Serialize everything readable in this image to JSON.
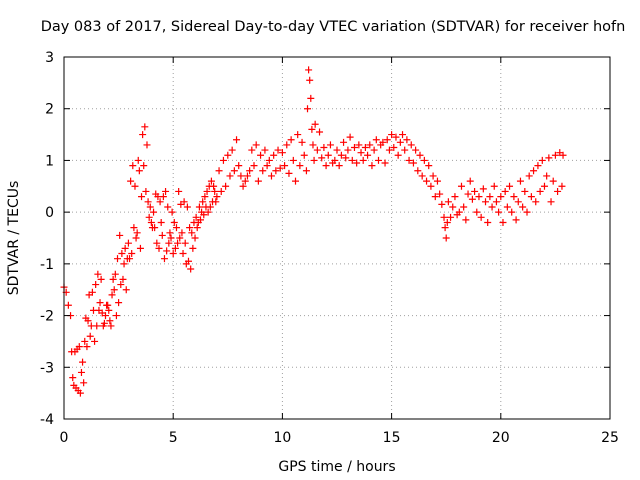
{
  "chart_data": {
    "type": "scatter",
    "title": "Day 083 of 2017, Sidereal Day-to-day VTEC variation (SDTVAR) for receiver hofn",
    "xlabel": "GPS time / hours",
    "ylabel": "SDTVAR / TECUs",
    "xlim": [
      0,
      25
    ],
    "ylim": [
      -4,
      3
    ],
    "xticks": [
      "0",
      "5",
      "10",
      "15",
      "20",
      "25"
    ],
    "yticks": [
      "-4",
      "-3",
      "-2",
      "-1",
      "0",
      "1",
      "2",
      "3"
    ],
    "grid": true,
    "marker": "plus",
    "series_color": "#ff0000",
    "series": [
      {
        "name": "SDTVAR",
        "points": [
          [
            0.0,
            -1.45
          ],
          [
            0.1,
            -1.55
          ],
          [
            0.2,
            -1.8
          ],
          [
            0.3,
            -2.0
          ],
          [
            0.35,
            -2.7
          ],
          [
            0.4,
            -3.2
          ],
          [
            0.45,
            -3.35
          ],
          [
            0.5,
            -2.7
          ],
          [
            0.55,
            -3.4
          ],
          [
            0.6,
            -2.65
          ],
          [
            0.65,
            -3.45
          ],
          [
            0.7,
            -2.6
          ],
          [
            0.75,
            -3.5
          ],
          [
            0.8,
            -3.1
          ],
          [
            0.85,
            -2.9
          ],
          [
            0.9,
            -3.3
          ],
          [
            0.95,
            -2.5
          ],
          [
            1.0,
            -2.05
          ],
          [
            1.05,
            -2.6
          ],
          [
            1.1,
            -2.1
          ],
          [
            1.15,
            -1.6
          ],
          [
            1.2,
            -2.4
          ],
          [
            1.25,
            -2.2
          ],
          [
            1.3,
            -1.55
          ],
          [
            1.35,
            -1.9
          ],
          [
            1.4,
            -2.5
          ],
          [
            1.45,
            -1.4
          ],
          [
            1.5,
            -2.2
          ],
          [
            1.55,
            -1.2
          ],
          [
            1.6,
            -1.9
          ],
          [
            1.65,
            -1.75
          ],
          [
            1.7,
            -1.3
          ],
          [
            1.75,
            -1.95
          ],
          [
            1.8,
            -2.2
          ],
          [
            1.85,
            -2.15
          ],
          [
            1.9,
            -2.0
          ],
          [
            1.95,
            -1.8
          ],
          [
            2.0,
            -1.8
          ],
          [
            2.05,
            -1.9
          ],
          [
            2.1,
            -2.1
          ],
          [
            2.15,
            -2.2
          ],
          [
            2.2,
            -1.6
          ],
          [
            2.25,
            -1.3
          ],
          [
            2.3,
            -1.5
          ],
          [
            2.35,
            -1.2
          ],
          [
            2.4,
            -2.0
          ],
          [
            2.45,
            -0.9
          ],
          [
            2.5,
            -1.75
          ],
          [
            2.55,
            -0.45
          ],
          [
            2.6,
            -1.4
          ],
          [
            2.65,
            -0.8
          ],
          [
            2.7,
            -1.3
          ],
          [
            2.75,
            -1.0
          ],
          [
            2.8,
            -0.7
          ],
          [
            2.85,
            -1.5
          ],
          [
            2.9,
            -0.9
          ],
          [
            2.95,
            -0.6
          ],
          [
            3.0,
            -0.9
          ],
          [
            3.05,
            0.6
          ],
          [
            3.1,
            -0.8
          ],
          [
            3.15,
            0.9
          ],
          [
            3.2,
            -0.3
          ],
          [
            3.25,
            0.5
          ],
          [
            3.3,
            -0.5
          ],
          [
            3.35,
            -0.4
          ],
          [
            3.4,
            1.0
          ],
          [
            3.45,
            0.8
          ],
          [
            3.5,
            -0.7
          ],
          [
            3.55,
            0.3
          ],
          [
            3.6,
            1.5
          ],
          [
            3.65,
            0.9
          ],
          [
            3.7,
            1.65
          ],
          [
            3.75,
            0.4
          ],
          [
            3.8,
            1.3
          ],
          [
            3.85,
            0.2
          ],
          [
            3.9,
            -0.1
          ],
          [
            3.95,
            0.1
          ],
          [
            4.0,
            -0.2
          ],
          [
            4.05,
            -0.3
          ],
          [
            4.1,
            0.0
          ],
          [
            4.15,
            -0.3
          ],
          [
            4.2,
            0.35
          ],
          [
            4.25,
            -0.6
          ],
          [
            4.3,
            0.3
          ],
          [
            4.35,
            -0.7
          ],
          [
            4.4,
            0.2
          ],
          [
            4.45,
            -0.2
          ],
          [
            4.5,
            -0.45
          ],
          [
            4.55,
            0.3
          ],
          [
            4.6,
            -0.9
          ],
          [
            4.65,
            0.4
          ],
          [
            4.7,
            -0.75
          ],
          [
            4.75,
            0.1
          ],
          [
            4.8,
            -0.6
          ],
          [
            4.85,
            -0.4
          ],
          [
            4.9,
            -0.5
          ],
          [
            4.95,
            0.0
          ],
          [
            5.0,
            -0.8
          ],
          [
            5.05,
            -0.2
          ],
          [
            5.1,
            -0.7
          ],
          [
            5.15,
            -0.3
          ],
          [
            5.2,
            -0.6
          ],
          [
            5.25,
            0.4
          ],
          [
            5.3,
            -0.5
          ],
          [
            5.35,
            0.15
          ],
          [
            5.4,
            -0.4
          ],
          [
            5.45,
            -0.8
          ],
          [
            5.5,
            0.2
          ],
          [
            5.55,
            -0.6
          ],
          [
            5.6,
            -1.0
          ],
          [
            5.65,
            0.1
          ],
          [
            5.7,
            -0.95
          ],
          [
            5.75,
            -0.3
          ],
          [
            5.8,
            -1.1
          ],
          [
            5.85,
            -0.4
          ],
          [
            5.9,
            -0.7
          ],
          [
            5.95,
            -0.2
          ],
          [
            6.0,
            -0.5
          ],
          [
            6.05,
            -0.1
          ],
          [
            6.1,
            -0.3
          ],
          [
            6.15,
            -0.2
          ],
          [
            6.2,
            0.1
          ],
          [
            6.25,
            -0.15
          ],
          [
            6.3,
            0.0
          ],
          [
            6.35,
            0.2
          ],
          [
            6.4,
            -0.05
          ],
          [
            6.45,
            0.3
          ],
          [
            6.5,
            0.1
          ],
          [
            6.55,
            0.4
          ],
          [
            6.6,
            0.0
          ],
          [
            6.65,
            0.5
          ],
          [
            6.7,
            0.1
          ],
          [
            6.75,
            0.6
          ],
          [
            6.8,
            0.2
          ],
          [
            6.85,
            0.5
          ],
          [
            6.9,
            0.4
          ],
          [
            6.95,
            0.2
          ],
          [
            7.0,
            0.3
          ],
          [
            7.1,
            0.8
          ],
          [
            7.2,
            0.4
          ],
          [
            7.3,
            1.0
          ],
          [
            7.4,
            0.5
          ],
          [
            7.5,
            1.1
          ],
          [
            7.6,
            0.7
          ],
          [
            7.7,
            1.2
          ],
          [
            7.8,
            0.8
          ],
          [
            7.9,
            1.4
          ],
          [
            8.0,
            0.9
          ],
          [
            8.1,
            0.7
          ],
          [
            8.2,
            0.5
          ],
          [
            8.3,
            0.6
          ],
          [
            8.4,
            0.7
          ],
          [
            8.5,
            0.8
          ],
          [
            8.6,
            1.2
          ],
          [
            8.7,
            0.9
          ],
          [
            8.8,
            1.3
          ],
          [
            8.9,
            0.6
          ],
          [
            9.0,
            1.1
          ],
          [
            9.1,
            0.8
          ],
          [
            9.2,
            1.2
          ],
          [
            9.3,
            0.9
          ],
          [
            9.4,
            1.0
          ],
          [
            9.5,
            0.7
          ],
          [
            9.6,
            1.1
          ],
          [
            9.7,
            0.8
          ],
          [
            9.8,
            1.2
          ],
          [
            9.9,
            0.85
          ],
          [
            10.0,
            1.15
          ],
          [
            10.1,
            0.9
          ],
          [
            10.2,
            1.3
          ],
          [
            10.3,
            0.75
          ],
          [
            10.4,
            1.4
          ],
          [
            10.5,
            1.0
          ],
          [
            10.6,
            0.6
          ],
          [
            10.7,
            1.5
          ],
          [
            10.8,
            0.9
          ],
          [
            10.9,
            1.35
          ],
          [
            11.0,
            1.1
          ],
          [
            11.1,
            0.8
          ],
          [
            11.15,
            2.0
          ],
          [
            11.2,
            2.75
          ],
          [
            11.25,
            2.55
          ],
          [
            11.3,
            2.2
          ],
          [
            11.35,
            1.6
          ],
          [
            11.4,
            1.3
          ],
          [
            11.45,
            1.0
          ],
          [
            11.5,
            1.7
          ],
          [
            11.6,
            1.2
          ],
          [
            11.7,
            1.55
          ],
          [
            11.8,
            1.05
          ],
          [
            11.9,
            1.25
          ],
          [
            12.0,
            0.9
          ],
          [
            12.1,
            1.1
          ],
          [
            12.2,
            1.3
          ],
          [
            12.3,
            0.95
          ],
          [
            12.4,
            1.0
          ],
          [
            12.5,
            1.2
          ],
          [
            12.6,
            0.9
          ],
          [
            12.7,
            1.1
          ],
          [
            12.8,
            1.35
          ],
          [
            12.9,
            1.05
          ],
          [
            13.0,
            1.2
          ],
          [
            13.1,
            1.45
          ],
          [
            13.2,
            1.0
          ],
          [
            13.3,
            1.25
          ],
          [
            13.4,
            0.95
          ],
          [
            13.5,
            1.3
          ],
          [
            13.6,
            1.15
          ],
          [
            13.7,
            1.0
          ],
          [
            13.8,
            1.25
          ],
          [
            13.9,
            1.1
          ],
          [
            14.0,
            1.3
          ],
          [
            14.1,
            0.9
          ],
          [
            14.2,
            1.2
          ],
          [
            14.3,
            1.4
          ],
          [
            14.4,
            1.0
          ],
          [
            14.5,
            1.3
          ],
          [
            14.6,
            1.35
          ],
          [
            14.7,
            0.95
          ],
          [
            14.8,
            1.4
          ],
          [
            14.9,
            1.2
          ],
          [
            15.0,
            1.5
          ],
          [
            15.1,
            1.25
          ],
          [
            15.2,
            1.45
          ],
          [
            15.3,
            1.1
          ],
          [
            15.4,
            1.35
          ],
          [
            15.5,
            1.5
          ],
          [
            15.6,
            1.2
          ],
          [
            15.7,
            1.4
          ],
          [
            15.8,
            1.0
          ],
          [
            15.9,
            1.3
          ],
          [
            16.0,
            0.95
          ],
          [
            16.1,
            1.2
          ],
          [
            16.2,
            0.8
          ],
          [
            16.3,
            1.1
          ],
          [
            16.4,
            0.7
          ],
          [
            16.5,
            1.0
          ],
          [
            16.6,
            0.6
          ],
          [
            16.7,
            0.9
          ],
          [
            16.8,
            0.5
          ],
          [
            16.9,
            0.7
          ],
          [
            17.0,
            0.3
          ],
          [
            17.1,
            0.6
          ],
          [
            17.2,
            0.35
          ],
          [
            17.3,
            0.15
          ],
          [
            17.4,
            -0.1
          ],
          [
            17.45,
            -0.3
          ],
          [
            17.5,
            -0.5
          ],
          [
            17.55,
            -0.2
          ],
          [
            17.6,
            0.2
          ],
          [
            17.7,
            -0.1
          ],
          [
            17.8,
            0.1
          ],
          [
            17.9,
            0.3
          ],
          [
            18.0,
            -0.05
          ],
          [
            18.1,
            0.0
          ],
          [
            18.2,
            0.5
          ],
          [
            18.3,
            0.1
          ],
          [
            18.4,
            -0.15
          ],
          [
            18.5,
            0.35
          ],
          [
            18.6,
            0.6
          ],
          [
            18.7,
            0.25
          ],
          [
            18.8,
            0.4
          ],
          [
            18.9,
            0.0
          ],
          [
            19.0,
            0.3
          ],
          [
            19.1,
            -0.1
          ],
          [
            19.2,
            0.45
          ],
          [
            19.3,
            0.2
          ],
          [
            19.4,
            -0.2
          ],
          [
            19.5,
            0.3
          ],
          [
            19.6,
            0.1
          ],
          [
            19.7,
            0.5
          ],
          [
            19.8,
            0.2
          ],
          [
            19.9,
            0.0
          ],
          [
            20.0,
            0.3
          ],
          [
            20.1,
            -0.2
          ],
          [
            20.2,
            0.4
          ],
          [
            20.3,
            0.1
          ],
          [
            20.4,
            0.5
          ],
          [
            20.5,
            0.0
          ],
          [
            20.6,
            0.3
          ],
          [
            20.7,
            -0.15
          ],
          [
            20.8,
            0.2
          ],
          [
            20.9,
            0.6
          ],
          [
            21.0,
            0.1
          ],
          [
            21.1,
            0.4
          ],
          [
            21.2,
            0.0
          ],
          [
            21.3,
            0.7
          ],
          [
            21.4,
            0.3
          ],
          [
            21.5,
            0.8
          ],
          [
            21.6,
            0.2
          ],
          [
            21.7,
            0.9
          ],
          [
            21.8,
            0.4
          ],
          [
            21.9,
            1.0
          ],
          [
            22.0,
            0.5
          ],
          [
            22.1,
            0.7
          ],
          [
            22.2,
            1.05
          ],
          [
            22.3,
            0.2
          ],
          [
            22.4,
            0.6
          ],
          [
            22.5,
            1.1
          ],
          [
            22.6,
            0.4
          ],
          [
            22.7,
            1.15
          ],
          [
            22.8,
            0.5
          ],
          [
            22.85,
            1.1
          ]
        ]
      }
    ]
  }
}
